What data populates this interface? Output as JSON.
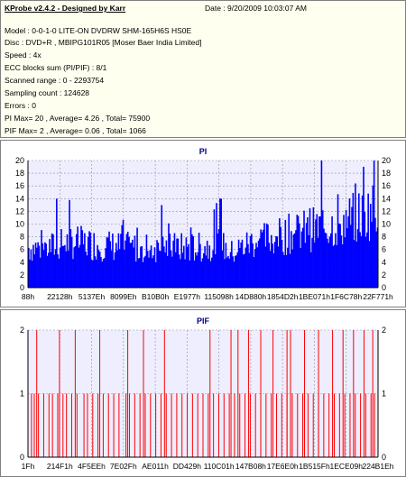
{
  "info": {
    "title": "KProbe v2.4.2 - Designed by Karr",
    "date": "Date : 9/20/2009 10:03:07 AM",
    "lines": [
      "Model : 0-0-1-0 LITE-ON DVDRW SHM-165H6S HS0E",
      "Disc : DVD+R , MBIPG101R05 [Moser Baer India Limited]",
      "Speed : 4x",
      "ECC blocks sum (PI/PIF) : 8/1",
      "Scanned range : 0 - 2293754",
      "Sampling count : 124628",
      "Errors : 0",
      "PI Max= 20 , Average= 4.26 , Total= 75900",
      "PIF Max= 2 , Average= 0.06 , Total= 1066"
    ]
  },
  "colors": {
    "pi_fill": "#0000ff",
    "pif_line": "#ff0000",
    "plot_bg": "#eeeeff",
    "grid": "#9090a0",
    "title": "#000080"
  },
  "chart_data": [
    {
      "type": "bar",
      "title": "PI",
      "ylim": [
        0,
        20
      ],
      "y_ticks": [
        0,
        2,
        4,
        6,
        8,
        10,
        12,
        14,
        16,
        18,
        20
      ],
      "x_tick_labels": [
        "88h",
        "22128h",
        "5137Eh",
        "8099Eh",
        "B10B0h",
        "E1977h",
        "115098h",
        "14D880h",
        "1854D2h",
        "1BE071h",
        "1F6C78h",
        "22F771h"
      ],
      "grid": true,
      "samples": 300,
      "envelope": [
        [
          0.0,
          7
        ],
        [
          0.06,
          7
        ],
        [
          0.12,
          8
        ],
        [
          0.2,
          7.5
        ],
        [
          0.3,
          7
        ],
        [
          0.4,
          7
        ],
        [
          0.5,
          7
        ],
        [
          0.54,
          8
        ],
        [
          0.58,
          6
        ],
        [
          0.64,
          8
        ],
        [
          0.72,
          9
        ],
        [
          0.8,
          10
        ],
        [
          0.88,
          11
        ],
        [
          0.95,
          12.5
        ],
        [
          1.0,
          14
        ]
      ],
      "peaks": [
        [
          0.84,
          20
        ],
        [
          0.96,
          19
        ],
        [
          0.99,
          20
        ],
        [
          0.55,
          14
        ],
        [
          0.38,
          13
        ],
        [
          0.08,
          14
        ]
      ]
    },
    {
      "type": "bar",
      "title": "PIF",
      "ylim": [
        0,
        2
      ],
      "y_ticks": [
        0,
        1,
        2
      ],
      "x_tick_labels": [
        "1Fh",
        "214F1h",
        "4F5EEh",
        "7E02Fh",
        "AE011h",
        "DD429h",
        "110C01h",
        "147B08h",
        "17E6E0h",
        "1B515Fh",
        "1ECE09h",
        "224B1Eh"
      ],
      "grid": true,
      "level_one_positions": [
        0.01,
        0.018,
        0.03,
        0.045,
        0.06,
        0.07,
        0.085,
        0.1,
        0.11,
        0.125,
        0.14,
        0.16,
        0.17,
        0.185,
        0.2,
        0.215,
        0.23,
        0.245,
        0.26,
        0.28,
        0.29,
        0.305,
        0.32,
        0.335,
        0.35,
        0.365,
        0.38,
        0.395,
        0.41,
        0.425,
        0.44,
        0.455,
        0.47,
        0.485,
        0.5,
        0.515,
        0.53,
        0.545,
        0.56,
        0.575,
        0.59,
        0.605,
        0.62,
        0.635,
        0.65,
        0.665,
        0.68,
        0.695,
        0.71,
        0.725,
        0.74,
        0.755,
        0.77,
        0.785,
        0.8,
        0.815,
        0.83,
        0.845,
        0.86,
        0.875,
        0.89,
        0.905,
        0.92,
        0.935,
        0.95,
        0.965,
        0.98,
        0.99
      ],
      "level_two_positions": [
        0.025,
        0.09,
        0.135,
        0.205,
        0.285,
        0.33,
        0.39,
        0.52,
        0.58,
        0.6,
        0.63,
        0.665,
        0.7,
        0.74,
        0.75,
        0.79,
        0.83,
        0.87,
        0.9,
        0.93,
        0.96,
        0.985
      ]
    }
  ]
}
